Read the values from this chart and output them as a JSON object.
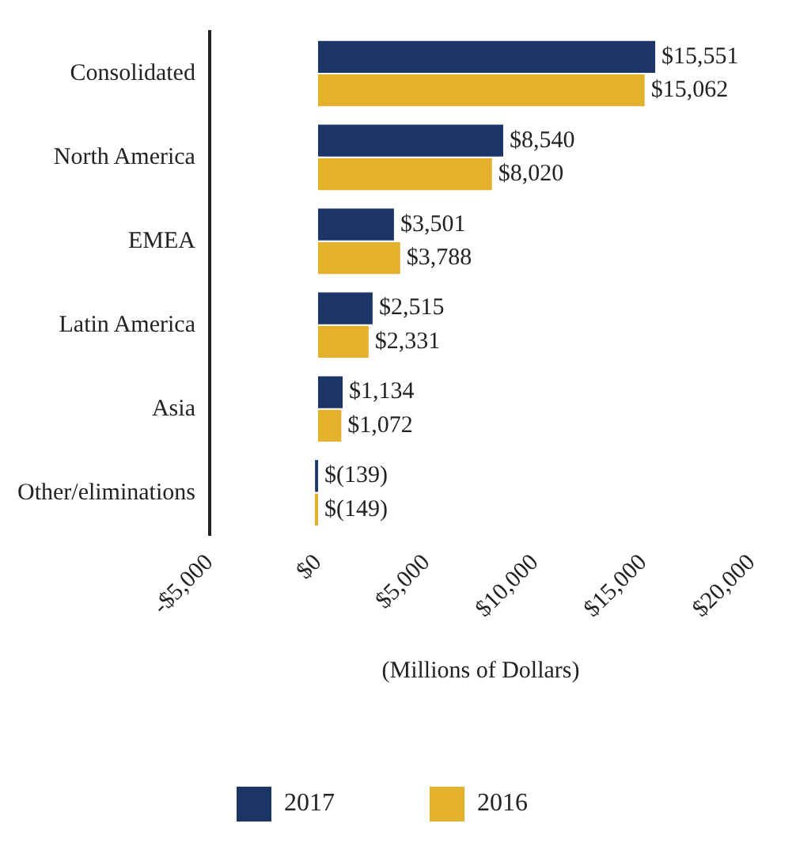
{
  "chart_data": {
    "type": "bar",
    "orientation": "horizontal",
    "categories": [
      "Consolidated",
      "North America",
      "EMEA",
      "Latin America",
      "Asia",
      "Other/eliminations"
    ],
    "series": [
      {
        "name": "2017",
        "color": "#1c3567",
        "values": [
          15551,
          8540,
          3501,
          2515,
          1134,
          -139
        ],
        "value_labels": [
          "$15,551",
          "$8,540",
          "$3,501",
          "$2,515",
          "$1,134",
          "$(139)"
        ]
      },
      {
        "name": "2016",
        "color": "#e4b12c",
        "values": [
          15062,
          8020,
          3788,
          2331,
          1072,
          -149
        ],
        "value_labels": [
          "$15,062",
          "$8,020",
          "$3,788",
          "$2,331",
          "$1,072",
          "$(149)"
        ]
      }
    ],
    "xlim": [
      -5000,
      20000
    ],
    "xticks": [
      {
        "value": -5000,
        "label": "-$5,000"
      },
      {
        "value": 0,
        "label": "$0"
      },
      {
        "value": 5000,
        "label": "$5,000"
      },
      {
        "value": 10000,
        "label": "$10,000"
      },
      {
        "value": 15000,
        "label": "$15,000"
      },
      {
        "value": 20000,
        "label": "$20,000"
      }
    ],
    "xlabel": "(Millions of Dollars)",
    "legend": "bottom"
  }
}
